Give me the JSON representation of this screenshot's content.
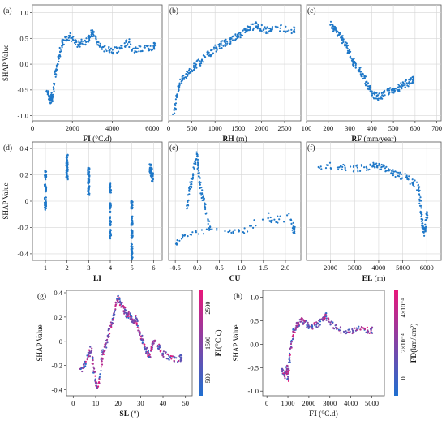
{
  "chart_data": [
    {
      "type": "scatter",
      "panel": "(a)",
      "xlabel": "FI",
      "xunit": "(°C.d)",
      "ylabel": "SHAP Value",
      "xlim": [
        0,
        6500
      ],
      "ylim": [
        -1.1,
        1.15
      ],
      "xticks": [
        "0",
        "2000",
        "4000",
        "6000"
      ],
      "yticks": [
        "-1.0",
        "-0.5",
        "0.0",
        "0.5",
        "1.0"
      ],
      "color": "#1f78c8",
      "grid": true,
      "series": [
        {
          "points": [
            [
              700,
              -0.58
            ],
            [
              800,
              -0.55
            ],
            [
              850,
              -0.65
            ],
            [
              900,
              -0.7
            ],
            [
              950,
              -0.6
            ],
            [
              1000,
              -0.75
            ],
            [
              1050,
              -0.55
            ],
            [
              1100,
              -0.35
            ],
            [
              1200,
              -0.1
            ],
            [
              1300,
              0.1
            ],
            [
              1400,
              0.25
            ],
            [
              1500,
              0.4
            ],
            [
              1700,
              0.5
            ],
            [
              1900,
              0.55
            ],
            [
              2100,
              0.45
            ],
            [
              2300,
              0.38
            ],
            [
              2500,
              0.42
            ],
            [
              2700,
              0.45
            ],
            [
              2900,
              0.55
            ],
            [
              3000,
              0.62
            ],
            [
              3100,
              0.5
            ],
            [
              3300,
              0.38
            ],
            [
              3600,
              0.3
            ],
            [
              3900,
              0.26
            ],
            [
              4200,
              0.28
            ],
            [
              4500,
              0.35
            ],
            [
              4800,
              0.45
            ],
            [
              5100,
              0.25
            ],
            [
              5400,
              0.3
            ],
            [
              5800,
              0.3
            ],
            [
              6100,
              0.35
            ]
          ]
        }
      ]
    },
    {
      "type": "scatter",
      "panel": "(b)",
      "xlabel": "RH",
      "xunit": "(m)",
      "xlim": [
        0,
        2850
      ],
      "ylim": [
        -1.1,
        1.15
      ],
      "xticks": [
        "0",
        "500",
        "1000",
        "1500",
        "2000",
        "2500"
      ],
      "yticks": [],
      "color": "#1f78c8",
      "grid": true,
      "series": [
        {
          "points": [
            [
              100,
              -0.95
            ],
            [
              150,
              -0.8
            ],
            [
              200,
              -0.5
            ],
            [
              250,
              -0.35
            ],
            [
              300,
              -0.25
            ],
            [
              400,
              -0.2
            ],
            [
              500,
              -0.1
            ],
            [
              600,
              0.0
            ],
            [
              700,
              0.05
            ],
            [
              800,
              0.15
            ],
            [
              900,
              0.22
            ],
            [
              1000,
              0.3
            ],
            [
              1100,
              0.35
            ],
            [
              1200,
              0.4
            ],
            [
              1300,
              0.45
            ],
            [
              1400,
              0.5
            ],
            [
              1500,
              0.55
            ],
            [
              1600,
              0.62
            ],
            [
              1700,
              0.68
            ],
            [
              1800,
              0.72
            ],
            [
              1900,
              0.75
            ],
            [
              2000,
              0.7
            ],
            [
              2100,
              0.65
            ],
            [
              2200,
              0.68
            ],
            [
              2400,
              0.7
            ],
            [
              2700,
              0.66
            ]
          ]
        }
      ]
    },
    {
      "type": "scatter",
      "panel": "(c)",
      "xlabel": "RF",
      "xunit": "(mm/year)",
      "xlim": [
        100,
        720
      ],
      "ylim": [
        -1.1,
        1.15
      ],
      "xticks": [
        "100",
        "200",
        "300",
        "400",
        "500",
        "600",
        "700"
      ],
      "yticks": [],
      "color": "#1f78c8",
      "grid": true,
      "series": [
        {
          "points": [
            [
              210,
              0.8
            ],
            [
              225,
              0.7
            ],
            [
              240,
              0.62
            ],
            [
              255,
              0.55
            ],
            [
              270,
              0.45
            ],
            [
              285,
              0.35
            ],
            [
              300,
              0.2
            ],
            [
              315,
              0.05
            ],
            [
              330,
              -0.05
            ],
            [
              350,
              -0.15
            ],
            [
              365,
              -0.25
            ],
            [
              380,
              -0.4
            ],
            [
              395,
              -0.5
            ],
            [
              410,
              -0.6
            ],
            [
              430,
              -0.65
            ],
            [
              450,
              -0.6
            ],
            [
              470,
              -0.55
            ],
            [
              490,
              -0.5
            ],
            [
              510,
              -0.5
            ],
            [
              530,
              -0.45
            ],
            [
              550,
              -0.4
            ],
            [
              570,
              -0.35
            ],
            [
              590,
              -0.3
            ]
          ]
        }
      ]
    },
    {
      "type": "scatter",
      "panel": "(d)",
      "xlabel": "LI",
      "xunit": "",
      "ylabel": "SHAP Value",
      "xlim": [
        0.4,
        6.4
      ],
      "ylim": [
        -0.45,
        0.45
      ],
      "xticks": [
        "1",
        "2",
        "3",
        "4",
        "5",
        "6"
      ],
      "yticks": [
        "-0.4",
        "-0.2",
        "0",
        "0.2",
        "0.4"
      ],
      "color": "#1f78c8",
      "grid": true,
      "series": [
        {
          "points": [
            [
              1,
              0.2
            ],
            [
              1,
              0.1
            ],
            [
              1,
              0.0
            ],
            [
              1,
              -0.04
            ],
            [
              2,
              0.32
            ],
            [
              2,
              0.27
            ],
            [
              2,
              0.2
            ],
            [
              3,
              0.22
            ],
            [
              3,
              0.14
            ],
            [
              3,
              0.08
            ],
            [
              4,
              0.1
            ],
            [
              4,
              -0.05
            ],
            [
              4,
              -0.15
            ],
            [
              4,
              -0.25
            ],
            [
              5,
              -0.03
            ],
            [
              5,
              -0.15
            ],
            [
              5,
              -0.25
            ],
            [
              5,
              -0.35
            ],
            [
              5,
              -0.42
            ],
            [
              5.85,
              0.25
            ],
            [
              5.9,
              0.22
            ],
            [
              5.95,
              0.18
            ]
          ]
        }
      ]
    },
    {
      "type": "scatter",
      "panel": "(e)",
      "xlabel": "CU",
      "xunit": "",
      "xlim": [
        -0.65,
        2.35
      ],
      "ylim": [
        -0.45,
        0.45
      ],
      "xticks": [
        "-0.5",
        "0.0",
        "0.5",
        "1.0",
        "1.5",
        "2.0"
      ],
      "yticks": [],
      "color": "#1f78c8",
      "grid": true,
      "series": [
        {
          "points": [
            [
              -0.25,
              -0.1
            ],
            [
              -0.2,
              0.05
            ],
            [
              -0.15,
              0.12
            ],
            [
              -0.1,
              0.2
            ],
            [
              -0.05,
              0.3
            ],
            [
              0.0,
              0.35
            ],
            [
              0.02,
              0.25
            ],
            [
              0.05,
              0.15
            ],
            [
              0.1,
              0.05
            ],
            [
              0.15,
              0.0
            ],
            [
              0.2,
              -0.08
            ],
            [
              0.3,
              -0.2
            ],
            [
              -0.5,
              -0.32
            ],
            [
              -0.3,
              -0.25
            ],
            [
              0.7,
              -0.22
            ],
            [
              1.0,
              -0.24
            ],
            [
              1.6,
              -0.1
            ],
            [
              1.7,
              -0.15
            ],
            [
              2.1,
              -0.12
            ],
            [
              2.2,
              -0.22
            ]
          ]
        }
      ]
    },
    {
      "type": "scatter",
      "panel": "(f)",
      "xlabel": "EL",
      "xunit": "(m)",
      "xlim": [
        1000,
        6600
      ],
      "ylim": [
        -0.45,
        0.45
      ],
      "xticks": [
        "2000",
        "3000",
        "4000",
        "5000",
        "6000"
      ],
      "yticks": [],
      "color": "#1f78c8",
      "grid": true,
      "series": [
        {
          "points": [
            [
              1500,
              0.25
            ],
            [
              2000,
              0.27
            ],
            [
              2500,
              0.26
            ],
            [
              3000,
              0.25
            ],
            [
              3500,
              0.26
            ],
            [
              3800,
              0.28
            ],
            [
              4000,
              0.27
            ],
            [
              4200,
              0.25
            ],
            [
              4500,
              0.22
            ],
            [
              4800,
              0.2
            ],
            [
              5100,
              0.18
            ],
            [
              5400,
              0.15
            ],
            [
              5600,
              0.12
            ],
            [
              5700,
              0.08
            ],
            [
              5750,
              -0.05
            ],
            [
              5800,
              -0.15
            ],
            [
              5850,
              -0.2
            ],
            [
              5900,
              -0.25
            ],
            [
              5950,
              -0.18
            ],
            [
              6000,
              -0.1
            ]
          ]
        }
      ]
    },
    {
      "type": "scatter",
      "panel": "(g)",
      "xlabel": "SL",
      "xunit": "(°)",
      "ylabel": "SHAP Value",
      "xlim": [
        -3,
        53
      ],
      "ylim": [
        -0.45,
        0.42
      ],
      "xticks": [
        "0",
        "10",
        "20",
        "30",
        "40",
        "50"
      ],
      "yticks": [
        "-0.4",
        "-0.2",
        "0",
        "0.2",
        "0.4"
      ],
      "colorbar": {
        "label": "FI",
        "unit": "(°C.d)",
        "ticks": [
          "500",
          "1500",
          "2500"
        ],
        "low": "#1f6fd0",
        "high": "#e8177a"
      },
      "grid": false,
      "series": [
        {
          "points": [
            [
              3,
              -0.25
            ],
            [
              5,
              -0.2
            ],
            [
              7,
              -0.12
            ],
            [
              8,
              -0.05
            ],
            [
              9,
              -0.22
            ],
            [
              10,
              -0.33
            ],
            [
              11,
              -0.4
            ],
            [
              12,
              -0.28
            ],
            [
              13,
              -0.1
            ],
            [
              14,
              -0.05
            ],
            [
              15,
              0.0
            ],
            [
              16,
              0.08
            ],
            [
              17,
              0.15
            ],
            [
              18,
              0.2
            ],
            [
              19,
              0.3
            ],
            [
              20,
              0.37
            ],
            [
              21,
              0.32
            ],
            [
              22,
              0.28
            ],
            [
              23,
              0.25
            ],
            [
              24,
              0.2
            ],
            [
              25,
              0.22
            ],
            [
              26,
              0.18
            ],
            [
              27,
              0.15
            ],
            [
              28,
              0.2
            ],
            [
              29,
              0.12
            ],
            [
              30,
              0.05
            ],
            [
              31,
              0.0
            ],
            [
              32,
              -0.05
            ],
            [
              33,
              -0.1
            ],
            [
              34,
              -0.12
            ],
            [
              35,
              -0.05
            ],
            [
              36,
              0.0
            ],
            [
              38,
              -0.05
            ],
            [
              40,
              -0.1
            ],
            [
              42,
              -0.12
            ],
            [
              45,
              -0.15
            ],
            [
              48,
              -0.14
            ]
          ]
        }
      ]
    },
    {
      "type": "scatter",
      "panel": "(h)",
      "xlabel": "FI",
      "xunit": "(°C.d)",
      "ylabel": "SHAP Value",
      "xlim": [
        -200,
        5600
      ],
      "ylim": [
        -1.1,
        1.15
      ],
      "xticks": [
        "0",
        "1000",
        "2000",
        "3000",
        "4000",
        "5000"
      ],
      "yticks": [
        "-1.0",
        "-0.5",
        "0.0",
        "0.5",
        "1.0"
      ],
      "colorbar": {
        "label": "FD",
        "unit": "(km/km²)",
        "ticks": [
          "0",
          "2×10⁻⁴",
          "4×10⁻⁴"
        ],
        "low": "#1f6fd0",
        "high": "#e8177a"
      },
      "grid": false,
      "series": [
        {
          "points": [
            [
              700,
              -0.55
            ],
            [
              800,
              -0.6
            ],
            [
              900,
              -0.7
            ],
            [
              950,
              -0.5
            ],
            [
              1000,
              -0.78
            ],
            [
              1050,
              -0.4
            ],
            [
              1100,
              -0.2
            ],
            [
              1200,
              0.1
            ],
            [
              1300,
              0.3
            ],
            [
              1400,
              0.4
            ],
            [
              1500,
              0.45
            ],
            [
              1700,
              0.5
            ],
            [
              1900,
              0.42
            ],
            [
              2100,
              0.38
            ],
            [
              2300,
              0.4
            ],
            [
              2500,
              0.45
            ],
            [
              2700,
              0.55
            ],
            [
              2800,
              0.62
            ],
            [
              3000,
              0.45
            ],
            [
              3300,
              0.35
            ],
            [
              3600,
              0.3
            ],
            [
              4000,
              0.28
            ],
            [
              4300,
              0.32
            ],
            [
              4700,
              0.3
            ],
            [
              5000,
              0.3
            ]
          ]
        }
      ]
    }
  ]
}
